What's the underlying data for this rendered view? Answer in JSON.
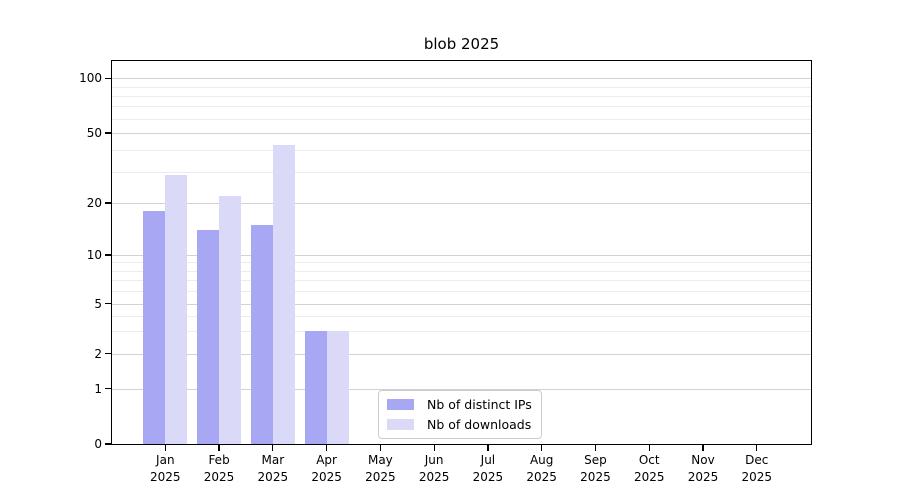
{
  "chart_data": {
    "type": "bar",
    "title": "blob 2025",
    "x_categories": [
      "Jan",
      "Feb",
      "Mar",
      "Apr",
      "May",
      "Jun",
      "Jul",
      "Aug",
      "Sep",
      "Oct",
      "Nov",
      "Dec"
    ],
    "x_year": "2025",
    "series": [
      {
        "name": "Nb of distinct IPs",
        "color": "#a7a7f4",
        "values": [
          18,
          14,
          15,
          3,
          0,
          0,
          0,
          0,
          0,
          0,
          0,
          0
        ]
      },
      {
        "name": "Nb of downloads",
        "color": "#dadaf8",
        "values": [
          29,
          22,
          43,
          3,
          0,
          0,
          0,
          0,
          0,
          0,
          0,
          0
        ]
      }
    ],
    "y_axis": {
      "scale": "symlog",
      "ticks": [
        0,
        1,
        2,
        5,
        10,
        20,
        50,
        100
      ],
      "minor_gridlines": [
        3,
        4,
        6,
        7,
        8,
        9,
        30,
        40,
        60,
        70,
        80,
        90
      ],
      "ylim_bottom": 0
    },
    "grid": "on",
    "legend_position": "lower-center"
  }
}
